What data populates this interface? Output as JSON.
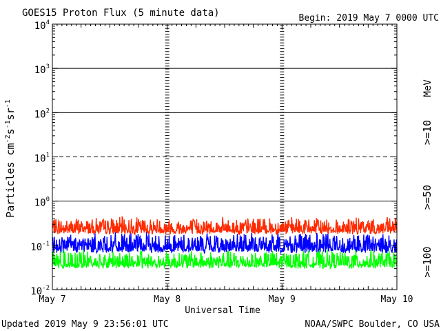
{
  "chart_data": {
    "type": "line",
    "title": "GOES15 Proton Flux (5 minute data)",
    "begin_label": "Begin: 2019 May 7 0000 UTC",
    "xlabel": "Universal Time",
    "ylabel_text": "Particles cm",
    "ylabel_sup1": "-2",
    "ylabel_mid1": "s",
    "ylabel_sup2": "-1",
    "ylabel_mid2": "sr",
    "ylabel_sup3": "-1",
    "y_scale": "log",
    "ylim": [
      0.01,
      10000
    ],
    "y_ticks": [
      {
        "base": "10",
        "exp": "4",
        "value": 10000
      },
      {
        "base": "10",
        "exp": "3",
        "value": 1000
      },
      {
        "base": "10",
        "exp": "2",
        "value": 100
      },
      {
        "base": "10",
        "exp": "1",
        "value": 10
      },
      {
        "base": "10",
        "exp": "0",
        "value": 1
      },
      {
        "base": "10",
        "exp": "-1",
        "value": 0.1
      },
      {
        "base": "10",
        "exp": "-2",
        "value": 0.01
      }
    ],
    "x_ticks": [
      "May 7",
      "May 8",
      "May 9",
      "May 10"
    ],
    "xlim_days": [
      0,
      3
    ],
    "units_label": "MeV",
    "series": [
      {
        "name": ">=10",
        "color": "#ff2a00",
        "level_min": 0.15,
        "level_max": 0.45
      },
      {
        "name": ">=50",
        "color": "#0000ff",
        "level_min": 0.055,
        "level_max": 0.2
      },
      {
        "name": ">=100",
        "color": "#00ff00",
        "level_min": 0.025,
        "level_max": 0.08
      }
    ],
    "reference_lines": [
      {
        "value": 1000,
        "style": "solid"
      },
      {
        "value": 100,
        "style": "solid"
      },
      {
        "value": 10,
        "style": "dashed"
      },
      {
        "value": 1,
        "style": "solid"
      }
    ]
  },
  "footer": {
    "updated": "Updated 2019 May  9 23:56:01 UTC",
    "source": "NOAA/SWPC Boulder, CO USA"
  }
}
